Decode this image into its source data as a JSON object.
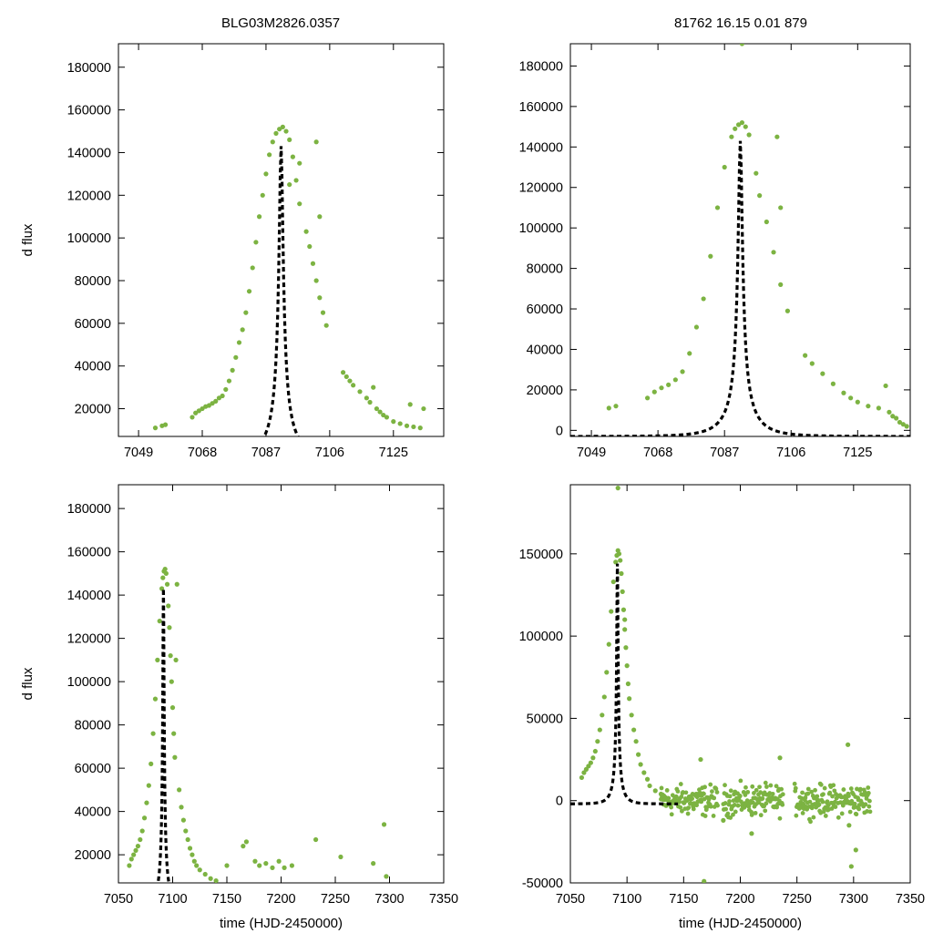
{
  "title_left": "BLG03M2826.0357",
  "title_right": "81762   16.15   0.01   879",
  "colors": {
    "data": "#7cb342",
    "model": "#000000",
    "frame": "#000000"
  },
  "model": {
    "type": "paczynski",
    "t0": 7091.5,
    "tE": 9.5,
    "base": -3000,
    "amp": 146000,
    "amp_zero_baseline": 144000
  },
  "chart_data": [
    {
      "id": "top-left",
      "type": "scatter",
      "xlabel": "",
      "ylabel": "d flux",
      "xlim": [
        7043,
        7140
      ],
      "ylim": [
        7000,
        191000
      ],
      "xticks": [
        7049,
        7068,
        7087,
        7106,
        7125
      ],
      "yticks": [
        20000,
        40000,
        60000,
        80000,
        100000,
        120000,
        140000,
        160000,
        180000
      ],
      "series": [
        {
          "kind": "points",
          "points": [
            [
              7054,
              11000
            ],
            [
              7056,
              12000
            ],
            [
              7057,
              12500
            ],
            [
              7065,
              16000
            ],
            [
              7066,
              18000
            ],
            [
              7067,
              19000
            ],
            [
              7068,
              20000
            ],
            [
              7069,
              21000
            ],
            [
              7070,
              21500
            ],
            [
              7071,
              22500
            ],
            [
              7072,
              23500
            ],
            [
              7073,
              25000
            ],
            [
              7074,
              26000
            ],
            [
              7075,
              29000
            ],
            [
              7076,
              33000
            ],
            [
              7077,
              38000
            ],
            [
              7078,
              44000
            ],
            [
              7079,
              51000
            ],
            [
              7080,
              57000
            ],
            [
              7081,
              65000
            ],
            [
              7082,
              75000
            ],
            [
              7083,
              86000
            ],
            [
              7084,
              98000
            ],
            [
              7085,
              110000
            ],
            [
              7086,
              120000
            ],
            [
              7087,
              130000
            ],
            [
              7088,
              139000
            ],
            [
              7089,
              145000
            ],
            [
              7090,
              149000
            ],
            [
              7091,
              151000
            ],
            [
              7092,
              152000
            ],
            [
              7093,
              150000
            ],
            [
              7094,
              146000
            ],
            [
              7095,
              138000
            ],
            [
              7096,
              127000
            ],
            [
              7097,
              116000
            ],
            [
              7099,
              103000
            ],
            [
              7100,
              96000
            ],
            [
              7101,
              88000
            ],
            [
              7102,
              80000
            ],
            [
              7103,
              72000
            ],
            [
              7104,
              65000
            ],
            [
              7105,
              59000
            ],
            [
              7103,
              110000
            ],
            [
              7102,
              145000
            ],
            [
              7110,
              37000
            ],
            [
              7111,
              35000
            ],
            [
              7112,
              33000
            ],
            [
              7113,
              31000
            ],
            [
              7115,
              28000
            ],
            [
              7117,
              25000
            ],
            [
              7118,
              23000
            ],
            [
              7120,
              20000
            ],
            [
              7121,
              18500
            ],
            [
              7122,
              17000
            ],
            [
              7123,
              16000
            ],
            [
              7125,
              14000
            ],
            [
              7127,
              13000
            ],
            [
              7129,
              12000
            ],
            [
              7131,
              11500
            ],
            [
              7133,
              11000
            ],
            [
              7134,
              20000
            ],
            [
              7119,
              30000
            ],
            [
              7130,
              22000
            ],
            [
              7097,
              135000
            ],
            [
              7094,
              125000
            ]
          ]
        },
        {
          "kind": "model"
        }
      ]
    },
    {
      "id": "top-right",
      "type": "scatter",
      "xlabel": "",
      "ylabel": "",
      "xlim": [
        7043,
        7140
      ],
      "ylim": [
        -3000,
        191000
      ],
      "xticks": [
        7049,
        7068,
        7087,
        7106,
        7125
      ],
      "yticks": [
        0,
        20000,
        40000,
        60000,
        80000,
        100000,
        120000,
        140000,
        160000,
        180000
      ],
      "series": [
        {
          "kind": "points",
          "points": [
            [
              7054,
              11000
            ],
            [
              7056,
              12000
            ],
            [
              7065,
              16000
            ],
            [
              7067,
              19000
            ],
            [
              7069,
              21000
            ],
            [
              7071,
              22500
            ],
            [
              7073,
              25000
            ],
            [
              7075,
              29000
            ],
            [
              7077,
              38000
            ],
            [
              7079,
              51000
            ],
            [
              7081,
              65000
            ],
            [
              7083,
              86000
            ],
            [
              7085,
              110000
            ],
            [
              7087,
              130000
            ],
            [
              7089,
              145000
            ],
            [
              7090,
              149000
            ],
            [
              7091,
              151000
            ],
            [
              7092,
              152000
            ],
            [
              7093,
              150000
            ],
            [
              7094,
              146000
            ],
            [
              7096,
              127000
            ],
            [
              7097,
              116000
            ],
            [
              7099,
              103000
            ],
            [
              7101,
              88000
            ],
            [
              7103,
              72000
            ],
            [
              7105,
              59000
            ],
            [
              7103,
              110000
            ],
            [
              7102,
              145000
            ],
            [
              7110,
              37000
            ],
            [
              7112,
              33000
            ],
            [
              7115,
              28000
            ],
            [
              7118,
              23000
            ],
            [
              7121,
              18500
            ],
            [
              7123,
              16000
            ],
            [
              7125,
              14000
            ],
            [
              7128,
              12000
            ],
            [
              7131,
              11000
            ],
            [
              7134,
              9000
            ],
            [
              7136,
              6000
            ],
            [
              7137,
              4000
            ],
            [
              7138,
              3000
            ],
            [
              7139,
              2000
            ],
            [
              7135,
              7000
            ],
            [
              7133,
              22000
            ],
            [
              7092,
              191000
            ]
          ]
        },
        {
          "kind": "model"
        }
      ]
    },
    {
      "id": "bottom-left",
      "type": "scatter",
      "xlabel": "time (HJD-2450000)",
      "ylabel": "d flux",
      "xlim": [
        7050,
        7350
      ],
      "ylim": [
        7000,
        191000
      ],
      "xticks": [
        7050,
        7100,
        7150,
        7200,
        7250,
        7300,
        7350
      ],
      "yticks": [
        20000,
        40000,
        60000,
        80000,
        100000,
        120000,
        140000,
        160000,
        180000
      ],
      "series": [
        {
          "kind": "points",
          "points": [
            [
              7060,
              15000
            ],
            [
              7062,
              18000
            ],
            [
              7064,
              20000
            ],
            [
              7066,
              22000
            ],
            [
              7068,
              24000
            ],
            [
              7070,
              27000
            ],
            [
              7072,
              31000
            ],
            [
              7074,
              37000
            ],
            [
              7076,
              44000
            ],
            [
              7078,
              52000
            ],
            [
              7080,
              62000
            ],
            [
              7082,
              76000
            ],
            [
              7084,
              92000
            ],
            [
              7086,
              110000
            ],
            [
              7088,
              128000
            ],
            [
              7090,
              143000
            ],
            [
              7091,
              148000
            ],
            [
              7092,
              151000
            ],
            [
              7093,
              152000
            ],
            [
              7094,
              150000
            ],
            [
              7095,
              145000
            ],
            [
              7096,
              135000
            ],
            [
              7097,
              125000
            ],
            [
              7098,
              112000
            ],
            [
              7099,
              100000
            ],
            [
              7100,
              88000
            ],
            [
              7101,
              76000
            ],
            [
              7102,
              65000
            ],
            [
              7103,
              110000
            ],
            [
              7104,
              145000
            ],
            [
              7106,
              50000
            ],
            [
              7108,
              42000
            ],
            [
              7110,
              36000
            ],
            [
              7112,
              31000
            ],
            [
              7114,
              27000
            ],
            [
              7116,
              23000
            ],
            [
              7118,
              20000
            ],
            [
              7120,
              17000
            ],
            [
              7122,
              15000
            ],
            [
              7125,
              13000
            ],
            [
              7130,
              11000
            ],
            [
              7135,
              9000
            ],
            [
              7140,
              8000
            ],
            [
              7150,
              15000
            ],
            [
              7165,
              24000
            ],
            [
              7168,
              26000
            ],
            [
              7176,
              17000
            ],
            [
              7180,
              15000
            ],
            [
              7186,
              16000
            ],
            [
              7192,
              14000
            ],
            [
              7198,
              17000
            ],
            [
              7203,
              14000
            ],
            [
              7210,
              15000
            ],
            [
              7232,
              27000
            ],
            [
              7255,
              19000
            ],
            [
              7285,
              16000
            ],
            [
              7295,
              34000
            ],
            [
              7297,
              10000
            ]
          ]
        },
        {
          "kind": "model"
        }
      ]
    },
    {
      "id": "bottom-right",
      "type": "scatter",
      "xlabel": "time (HJD-2450000)",
      "ylabel": "",
      "xlim": [
        7050,
        7350
      ],
      "ylim": [
        -50000,
        192000
      ],
      "xticks": [
        7050,
        7100,
        7150,
        7200,
        7250,
        7300,
        7350
      ],
      "yticks": [
        -50000,
        0,
        50000,
        100000,
        150000
      ],
      "series": [
        {
          "kind": "points",
          "points": [
            [
              7060,
              14000
            ],
            [
              7062,
              17000
            ],
            [
              7064,
              19000
            ],
            [
              7066,
              21000
            ],
            [
              7068,
              23000
            ],
            [
              7070,
              26000
            ],
            [
              7072,
              30000
            ],
            [
              7074,
              36000
            ],
            [
              7076,
              43000
            ],
            [
              7078,
              52000
            ],
            [
              7080,
              63000
            ],
            [
              7082,
              78000
            ],
            [
              7084,
              95000
            ],
            [
              7086,
              115000
            ],
            [
              7088,
              133000
            ],
            [
              7090,
              145000
            ],
            [
              7091,
              149000
            ],
            [
              7092,
              152000
            ],
            [
              7093,
              150000
            ],
            [
              7094,
              146000
            ],
            [
              7095,
              138000
            ],
            [
              7096,
              127000
            ],
            [
              7097,
              116000
            ],
            [
              7098,
              104000
            ],
            [
              7099,
              93000
            ],
            [
              7100,
              82000
            ],
            [
              7101,
              71000
            ],
            [
              7102,
              62000
            ],
            [
              7104,
              52000
            ],
            [
              7106,
              43000
            ],
            [
              7108,
              36000
            ],
            [
              7110,
              28000
            ],
            [
              7112,
              22000
            ],
            [
              7115,
              17000
            ],
            [
              7118,
              13000
            ],
            [
              7120,
              9000
            ],
            [
              7125,
              6000
            ],
            [
              7130,
              4000
            ],
            [
              7092,
              190000
            ],
            [
              7098,
              110000
            ],
            [
              7165,
              25000
            ],
            [
              7168,
              -49000
            ],
            [
              7185,
              -12000
            ],
            [
              7210,
              -20000
            ],
            [
              7235,
              26000
            ],
            [
              7295,
              34000
            ],
            [
              7298,
              -40000
            ],
            [
              7302,
              -30000
            ],
            [
              7296,
              -15000
            ]
          ]
        },
        {
          "kind": "band",
          "segments": [
            [
              7130,
              7180
            ],
            [
              7185,
              7238
            ],
            [
              7248,
              7315
            ]
          ],
          "center": 0,
          "spread": 9000
        },
        {
          "kind": "model",
          "zero_baseline": true
        }
      ]
    }
  ]
}
